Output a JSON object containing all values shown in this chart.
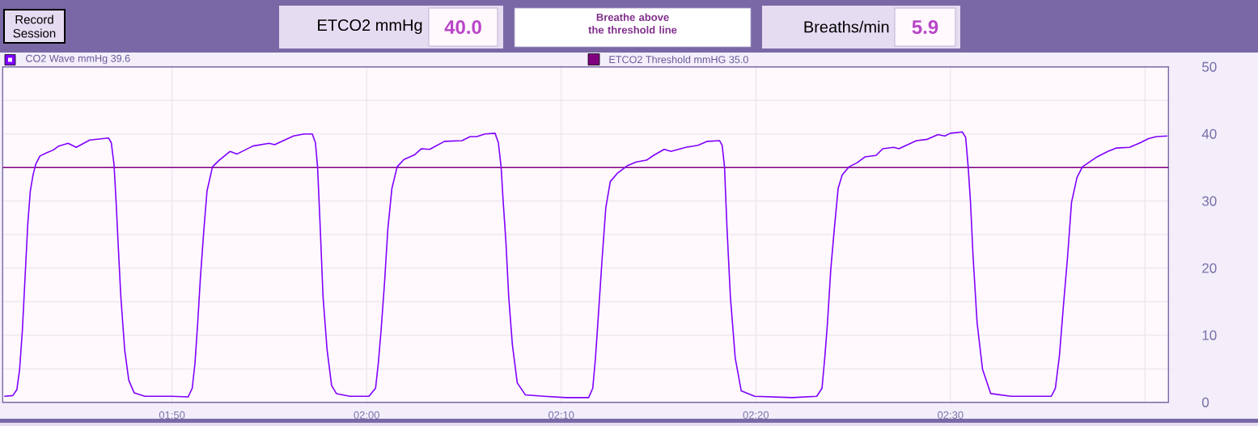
{
  "chart_data": {
    "type": "line",
    "annotations": [
      "Record Session",
      "ETCO2 mmHg",
      "40.0",
      "Breathe above the threshold line",
      "Breaths/min",
      "5.9"
    ],
    "x": [
      101.38,
      101.82,
      102.03,
      102.17,
      102.31,
      102.45,
      102.59,
      102.72,
      102.86,
      103.0,
      103.21,
      103.56,
      103.9,
      104.18,
      104.66,
      105.08,
      105.77,
      106.74,
      106.88,
      107.02,
      107.13,
      107.23,
      107.37,
      107.57,
      107.78,
      108.06,
      108.61,
      110.0,
      110.83,
      111.04,
      111.18,
      111.32,
      111.46,
      111.64,
      111.8,
      112.08,
      112.43,
      112.98,
      113.33,
      114.16,
      114.99,
      115.27,
      116.24,
      116.79,
      117.21,
      117.37,
      117.48,
      117.62,
      117.76,
      117.97,
      118.2,
      118.45,
      119.15,
      120.12,
      120.46,
      120.6,
      120.74,
      120.92,
      121.09,
      121.3,
      121.57,
      121.92,
      122.47,
      122.82,
      123.24,
      124.0,
      124.9,
      125.32,
      125.66,
      126.08,
      126.6,
      126.77,
      126.91,
      127.02,
      127.16,
      127.3,
      127.49,
      127.74,
      128.16,
      129.13,
      130.24,
      131.41,
      131.62,
      131.76,
      131.9,
      132.11,
      132.29,
      132.52,
      132.87,
      133.42,
      133.84,
      134.39,
      134.74,
      135.29,
      135.64,
      136.4,
      137.03,
      137.51,
      138.14,
      138.27,
      138.39,
      138.52,
      138.69,
      138.94,
      139.25,
      139.94,
      141.88,
      143.13,
      143.4,
      143.54,
      143.68,
      143.85,
      144.03,
      144.23,
      144.44,
      144.79,
      145.2,
      145.62,
      146.18,
      146.52,
      147.08,
      147.35,
      148.25,
      148.81,
      149.36,
      149.71,
      149.99,
      150.61,
      150.78,
      150.91,
      151.03,
      151.16,
      151.37,
      151.65,
      152.07,
      153.1,
      155.18,
      155.39,
      155.6,
      155.81,
      156.02,
      156.22,
      156.5,
      156.78,
      157.54,
      158.09,
      158.51,
      159.2,
      159.76,
      160.17,
      160.58,
      161.14
    ],
    "series": [
      {
        "name": "CO2 Wave mmHg 39.6",
        "color": "#8000ff",
        "values": [
          0.9,
          1.0,
          1.9,
          4.9,
          10.6,
          18.6,
          26.6,
          31.5,
          33.9,
          35.5,
          36.7,
          37.2,
          37.6,
          38.2,
          38.6,
          38.0,
          39.1,
          39.4,
          38.7,
          35.5,
          29.8,
          23.8,
          15.8,
          7.8,
          3.3,
          1.4,
          0.9,
          0.9,
          0.8,
          2.1,
          5.8,
          11.8,
          18.6,
          25.8,
          31.5,
          35.1,
          36.1,
          37.4,
          37.0,
          38.2,
          38.6,
          38.4,
          39.7,
          40.0,
          40.0,
          38.7,
          35.1,
          25.8,
          15.8,
          7.8,
          2.5,
          1.3,
          0.9,
          0.9,
          2.1,
          5.8,
          10.6,
          17.8,
          25.8,
          31.9,
          35.1,
          36.2,
          36.9,
          37.8,
          37.7,
          38.9,
          39.0,
          39.6,
          39.6,
          40.0,
          40.1,
          38.7,
          35.1,
          29.8,
          23.8,
          15.8,
          8.6,
          2.9,
          1.1,
          0.9,
          0.7,
          0.7,
          2.1,
          6.6,
          12.6,
          21.8,
          29.0,
          32.9,
          34.1,
          35.3,
          35.8,
          36.1,
          36.8,
          37.7,
          37.4,
          38.0,
          38.3,
          38.9,
          39.0,
          38.3,
          35.1,
          25.8,
          15.8,
          6.6,
          1.7,
          0.9,
          0.7,
          0.9,
          2.1,
          6.6,
          11.8,
          19.8,
          25.8,
          31.9,
          33.9,
          35.1,
          35.7,
          36.6,
          36.8,
          37.8,
          38.0,
          37.8,
          39.0,
          39.2,
          39.9,
          39.7,
          40.1,
          40.3,
          39.5,
          35.1,
          29.8,
          21.8,
          11.8,
          4.9,
          1.3,
          0.9,
          0.9,
          2.1,
          7.0,
          14.6,
          21.8,
          29.8,
          33.5,
          35.1,
          36.6,
          37.4,
          37.9,
          38.0,
          38.7,
          39.3,
          39.6,
          39.7
        ]
      }
    ],
    "ref_lines": [
      {
        "axis": "y",
        "value": 35.0,
        "label": "ETCO2 Threshold mmHG 35.0",
        "color": "#800080"
      }
    ],
    "xlim": [
      101.3,
      161.2
    ],
    "xticks": [
      {
        "value": 110,
        "label": "01:50"
      },
      {
        "value": 120,
        "label": "02:00"
      },
      {
        "value": 130,
        "label": "02:10"
      },
      {
        "value": 140,
        "label": "02:20"
      },
      {
        "value": 150,
        "label": "02:30"
      },
      {
        "value": 160,
        "label": null
      }
    ],
    "ylim": [
      0,
      50
    ],
    "yticks": [
      0,
      {
        "value": 5,
        "label": null
      },
      10,
      {
        "value": 15,
        "label": null
      },
      20,
      {
        "value": 25,
        "label": null
      },
      30,
      {
        "value": 35,
        "label": null
      },
      40,
      {
        "value": 45,
        "label": null
      },
      50
    ],
    "grid": true,
    "legend": "top",
    "marker": "none",
    "line_style": "solid"
  }
}
